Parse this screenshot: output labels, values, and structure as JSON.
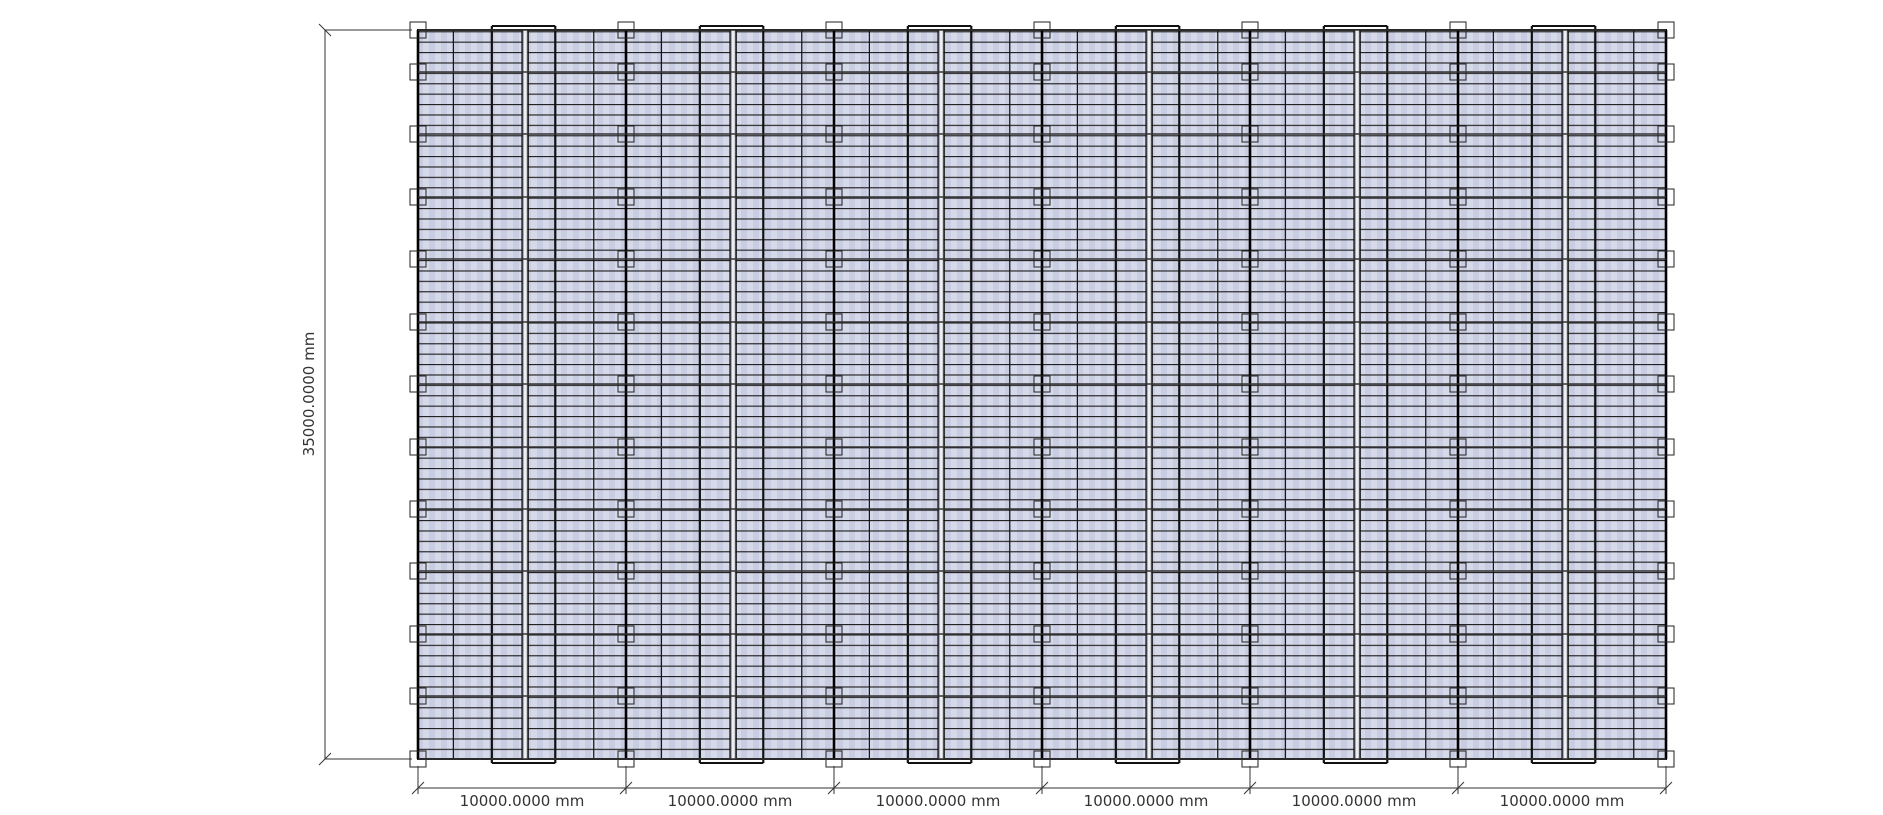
{
  "dimensions": {
    "height": "35000.0000 mm",
    "widths": [
      "10000.0000 mm",
      "10000.0000 mm",
      "10000.0000 mm",
      "10000.0000 mm",
      "10000.0000 mm",
      "10000.0000 mm"
    ]
  }
}
